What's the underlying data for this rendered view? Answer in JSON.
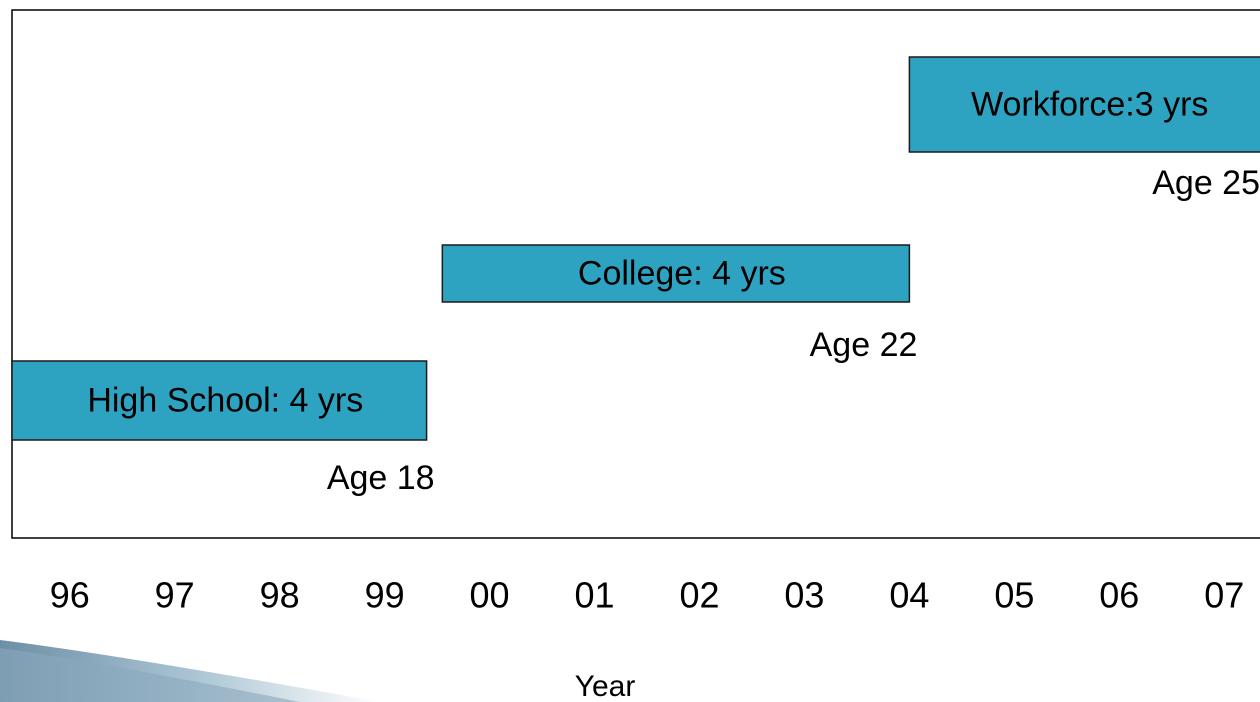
{
  "chart_data": {
    "type": "gantt",
    "xlabel": "Year",
    "xlim": [
      1995.45,
      2007.35
    ],
    "xticks": [
      {
        "value": 1996,
        "label": "96"
      },
      {
        "value": 1997,
        "label": "97"
      },
      {
        "value": 1998,
        "label": "98"
      },
      {
        "value": 1999,
        "label": "99"
      },
      {
        "value": 2000,
        "label": "00"
      },
      {
        "value": 2001,
        "label": "01"
      },
      {
        "value": 2002,
        "label": "02"
      },
      {
        "value": 2003,
        "label": "03"
      },
      {
        "value": 2004,
        "label": "04"
      },
      {
        "value": 2005,
        "label": "05"
      },
      {
        "value": 2006,
        "label": "06"
      },
      {
        "value": 2007,
        "label": "07"
      }
    ],
    "color": "#2ea3c1",
    "tasks": [
      {
        "label": "High School: 4 yrs",
        "start": 1995.45,
        "end": 1999.4,
        "note": "Age 18"
      },
      {
        "label": "College: 4 yrs",
        "start": 1999.55,
        "end": 2004.0,
        "note": "Age 22"
      },
      {
        "label": "Workforce:3 yrs",
        "start": 2004.0,
        "end": 2007.35,
        "note": "Age 25"
      }
    ]
  }
}
